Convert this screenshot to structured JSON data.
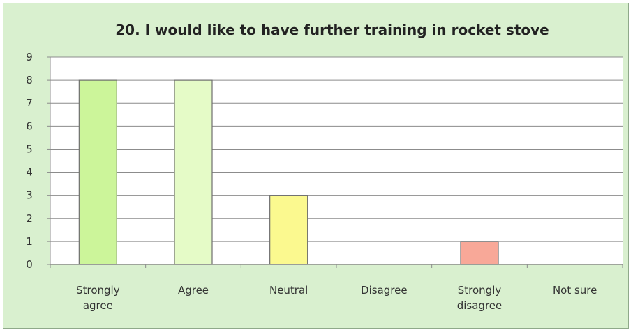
{
  "chart_data": {
    "type": "bar",
    "title": "20. I would like to have further training in rocket stove",
    "categories": [
      "Strongly agree",
      "Agree",
      "Neutral",
      "Disagree",
      "Strongly disagree",
      "Not sure"
    ],
    "category_lines": [
      [
        "Strongly",
        "agree"
      ],
      [
        "Agree"
      ],
      [
        "Neutral"
      ],
      [
        "Disagree"
      ],
      [
        "Strongly",
        "disagree"
      ],
      [
        "Not sure"
      ]
    ],
    "values": [
      8,
      8,
      3,
      0,
      1,
      0
    ],
    "bar_colors": [
      "#ccf59a",
      "#e5fbc7",
      "#fbf98f",
      "#ffffff",
      "#f8a898",
      "#ffffff"
    ],
    "ylim": [
      0,
      9
    ],
    "yticks": [
      0,
      1,
      2,
      3,
      4,
      5,
      6,
      7,
      8,
      9
    ],
    "xlabel": "",
    "ylabel": "",
    "grid": true,
    "legend": "none"
  },
  "colors": {
    "background": "#d9f0cf",
    "plot_area": "#ffffff",
    "gridline": "#8c8c8c"
  }
}
